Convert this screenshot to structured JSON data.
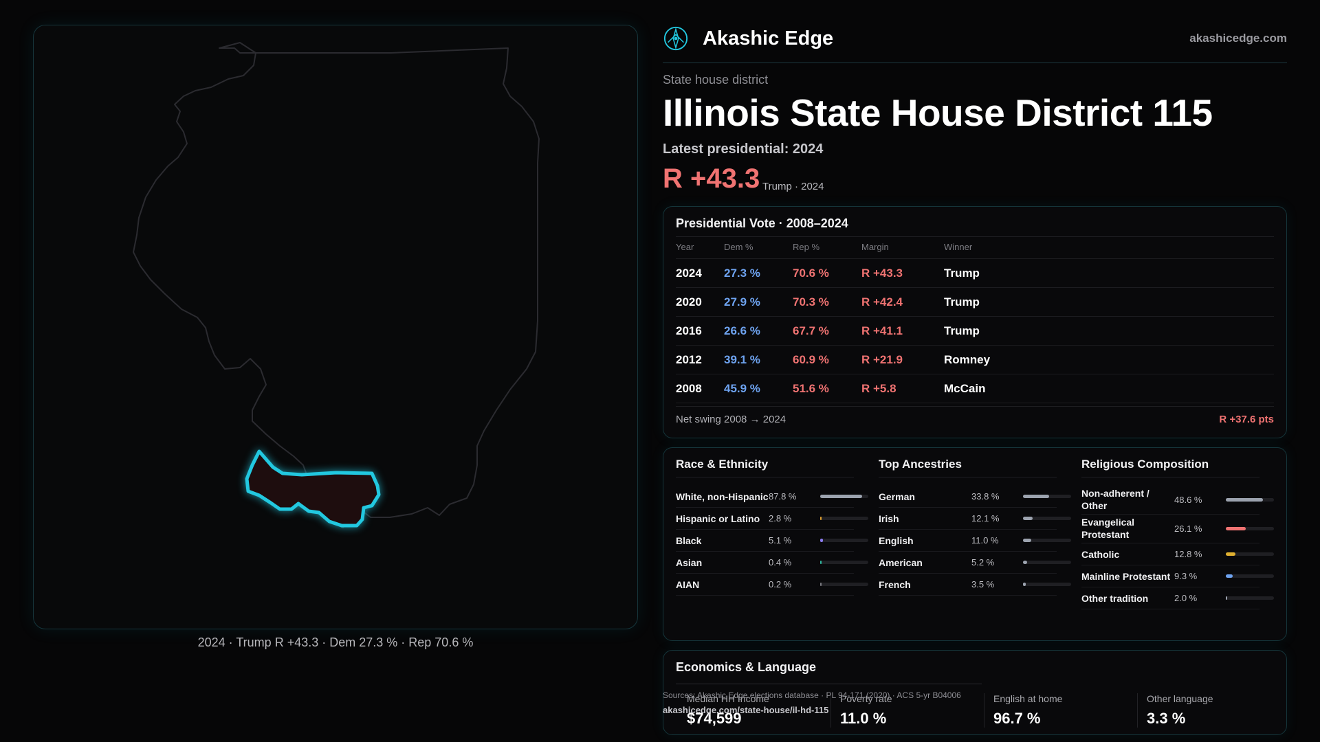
{
  "map_caption": "2024 · Trump R +43.3 · Dem 27.3 % · Rep 70.6 %",
  "brand": {
    "name": "Akashic Edge",
    "url": "akashicedge.com",
    "logo_icon": "compass-rose-icon"
  },
  "header": {
    "kicker": "State house district",
    "title": "Illinois State House District 115",
    "latest": "Latest presidential: 2024",
    "margin": "R +43.3",
    "margin_sub": "Trump · 2024"
  },
  "colors": {
    "accent": "#22c8e0",
    "dem": "#6ea3f0",
    "rep": "#f07372"
  },
  "vote": {
    "title": "Presidential Vote · 2008–2024",
    "headers": {
      "year": "Year",
      "dem": "Dem %",
      "rep": "Rep %",
      "margin": "Margin",
      "winner": "Winner"
    },
    "rows": [
      {
        "year": "2024",
        "dem": "27.3 %",
        "rep": "70.6 %",
        "margin": "R +43.3",
        "winner": "Trump"
      },
      {
        "year": "2020",
        "dem": "27.9 %",
        "rep": "70.3 %",
        "margin": "R +42.4",
        "winner": "Trump"
      },
      {
        "year": "2016",
        "dem": "26.6 %",
        "rep": "67.7 %",
        "margin": "R +41.1",
        "winner": "Trump"
      },
      {
        "year": "2012",
        "dem": "39.1 %",
        "rep": "60.9 %",
        "margin": "R +21.9",
        "winner": "Romney"
      },
      {
        "year": "2008",
        "dem": "45.9 %",
        "rep": "51.6 %",
        "margin": "R +5.8",
        "winner": "McCain"
      }
    ],
    "swing_label": "Net swing 2008 → 2024",
    "swing_value": "R +37.6 pts"
  },
  "race": {
    "title": "Race & Ethnicity",
    "items": [
      {
        "label": "White, non-Hispanic",
        "value": "87.8 %",
        "pct": 87.8,
        "color": "#9ca3af"
      },
      {
        "label": "Hispanic or Latino",
        "value": "2.8 %",
        "pct": 2.8,
        "color": "#e0a030"
      },
      {
        "label": "Black",
        "value": "5.1 %",
        "pct": 5.1,
        "color": "#8b7cf0"
      },
      {
        "label": "Asian",
        "value": "0.4 %",
        "pct": 0.4,
        "color": "#2fb8a0"
      },
      {
        "label": "AIAN",
        "value": "0.2 %",
        "pct": 0.2,
        "color": "#7a7a80"
      }
    ]
  },
  "ancestries": {
    "title": "Top Ancestries",
    "items": [
      {
        "label": "German",
        "value": "33.8 %",
        "pct": 33.8,
        "color": "#9ca3af"
      },
      {
        "label": "Irish",
        "value": "12.1 %",
        "pct": 12.1,
        "color": "#9ca3af"
      },
      {
        "label": "English",
        "value": "11.0 %",
        "pct": 11.0,
        "color": "#9ca3af"
      },
      {
        "label": "American",
        "value": "5.2 %",
        "pct": 5.2,
        "color": "#9ca3af"
      },
      {
        "label": "French",
        "value": "3.5 %",
        "pct": 3.5,
        "color": "#9ca3af"
      }
    ]
  },
  "religion": {
    "title": "Religious Composition",
    "items": [
      {
        "label": "Non-adherent / Other",
        "value": "48.6 %",
        "pct": 48.6,
        "color": "#9ca3af"
      },
      {
        "label": "Evangelical Protestant",
        "value": "26.1 %",
        "pct": 26.1,
        "color": "#f07372"
      },
      {
        "label": "Catholic",
        "value": "12.8 %",
        "pct": 12.8,
        "color": "#e0b030"
      },
      {
        "label": "Mainline Protestant",
        "value": "9.3 %",
        "pct": 9.3,
        "color": "#6ea3f0"
      },
      {
        "label": "Other tradition",
        "value": "2.0 %",
        "pct": 2.0,
        "color": "#9ca3af"
      }
    ]
  },
  "economics": {
    "title": "Economics & Language",
    "cells": [
      {
        "label": "Median HH Income",
        "value": "$74,599"
      },
      {
        "label": "Poverty rate",
        "value": "11.0 %"
      },
      {
        "label": "English at home",
        "value": "96.7 %"
      },
      {
        "label": "Other language",
        "value": "3.3 %"
      }
    ]
  },
  "sources": {
    "text": "Sources: Akashic Edge elections database · PL 94-171 (2020) · ACS 5-yr B04006",
    "url": "akashicedge.com/state-house/il-hd-115"
  }
}
